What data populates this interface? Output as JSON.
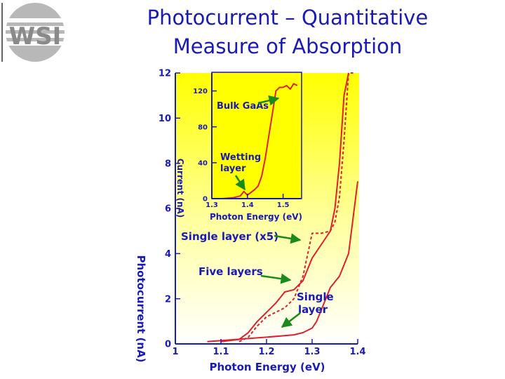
{
  "slide": {
    "title_line1": "Photocurrent – Quantitative",
    "title_line2": "Measure of Absorption",
    "logo_text": "WSI"
  },
  "colors": {
    "title": "#1a1ab4",
    "curve": "#e0202c",
    "axis": "#1a1ab4",
    "annotation_arrow": "#1a8a1a",
    "background_top": "#ffff00",
    "background_bottom": "#ffffff"
  },
  "chart_data": [
    {
      "type": "line",
      "xlabel": "Photon Energy (eV)",
      "ylabel": "Photocurrent (nA)",
      "xlim": [
        1.0,
        1.4
      ],
      "ylim": [
        0,
        12
      ],
      "x_ticks": [
        "1",
        "1.1",
        "1.2",
        "1.3",
        "1.4"
      ],
      "y_ticks": [
        "0",
        "2",
        "4",
        "6",
        "8",
        "10",
        "12"
      ],
      "background": "yellow-to-white gradient",
      "series": [
        {
          "name": "Single layer (x5)",
          "style": "dashed",
          "x": [
            1.14,
            1.16,
            1.18,
            1.2,
            1.22,
            1.24,
            1.26,
            1.28,
            1.3,
            1.32,
            1.34,
            1.35,
            1.36,
            1.37,
            1.38,
            1.39
          ],
          "y": [
            0.1,
            0.3,
            0.8,
            1.2,
            1.4,
            1.6,
            2.0,
            3.0,
            4.9,
            4.9,
            5.0,
            5.4,
            6.5,
            9.0,
            12.0,
            12.0
          ]
        },
        {
          "name": "Five layers",
          "style": "solid",
          "x": [
            1.1,
            1.14,
            1.16,
            1.18,
            1.2,
            1.22,
            1.24,
            1.26,
            1.28,
            1.3,
            1.32,
            1.34,
            1.35,
            1.36,
            1.37,
            1.38
          ],
          "y": [
            0.1,
            0.2,
            0.5,
            1.0,
            1.4,
            1.8,
            2.3,
            2.4,
            2.8,
            3.8,
            4.4,
            5.0,
            6.0,
            8.0,
            11.0,
            12.0
          ]
        },
        {
          "name": "Single layer",
          "style": "solid",
          "x": [
            1.07,
            1.2,
            1.26,
            1.28,
            1.3,
            1.31,
            1.32,
            1.34,
            1.36,
            1.38,
            1.4
          ],
          "y": [
            0.1,
            0.3,
            0.4,
            0.5,
            0.7,
            1.0,
            1.5,
            2.5,
            3.0,
            4.0,
            7.2
          ]
        }
      ],
      "annotations": [
        {
          "text": "Single layer (x5)"
        },
        {
          "text": "Five layers"
        },
        {
          "text": "Single"
        },
        {
          "text": "layer"
        }
      ]
    },
    {
      "type": "line",
      "role": "inset",
      "xlabel": "Photon Energy (eV)",
      "ylabel": "Current (nA)",
      "xlim": [
        1.3,
        1.55
      ],
      "ylim": [
        0,
        140
      ],
      "x_ticks": [
        "1.3",
        "1.4",
        "1.5"
      ],
      "y_ticks": [
        "0",
        "40",
        "80",
        "120"
      ],
      "series": [
        {
          "x": [
            1.33,
            1.36,
            1.38,
            1.39,
            1.4,
            1.42,
            1.43,
            1.44,
            1.45,
            1.46,
            1.47,
            1.48,
            1.49,
            1.5,
            1.51,
            1.52,
            1.53,
            1.54
          ],
          "y": [
            0,
            1,
            3,
            8,
            4,
            10,
            14,
            25,
            45,
            70,
            95,
            120,
            124,
            124,
            126,
            122,
            128,
            126
          ]
        }
      ],
      "annotations": [
        {
          "text": "Bulk GaAs"
        },
        {
          "text": "Wetting"
        },
        {
          "text": "layer"
        }
      ]
    }
  ]
}
